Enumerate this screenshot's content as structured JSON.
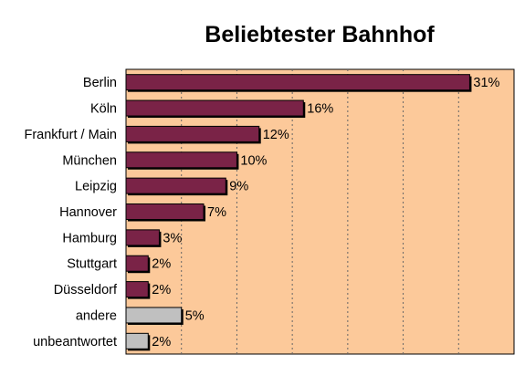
{
  "chart_data": {
    "type": "bar",
    "orientation": "horizontal",
    "title": "Beliebtester Bahnhof",
    "xlabel": "",
    "ylabel": "",
    "categories": [
      "Berlin",
      "Köln",
      "Frankfurt / Main",
      "München",
      "Leipzig",
      "Hannover",
      "Hamburg",
      "Stuttgart",
      "Düsseldorf",
      "andere",
      "unbeantwortet"
    ],
    "values": [
      31,
      16,
      12,
      10,
      9,
      7,
      3,
      2,
      2,
      5,
      2
    ],
    "value_labels": [
      "31%",
      "16%",
      "12%",
      "10%",
      "9%",
      "7%",
      "3%",
      "2%",
      "2%",
      "5%",
      "2%"
    ],
    "unit": "%",
    "xlim": [
      0,
      35
    ],
    "grid": true,
    "legend": "none",
    "colors": {
      "bar_primary": "#7a2347",
      "bar_secondary": "#c0c0c0",
      "plot_background": "#fcc99a",
      "grid": "#666666"
    },
    "secondary_categories": [
      "andere",
      "unbeantwortet"
    ]
  }
}
